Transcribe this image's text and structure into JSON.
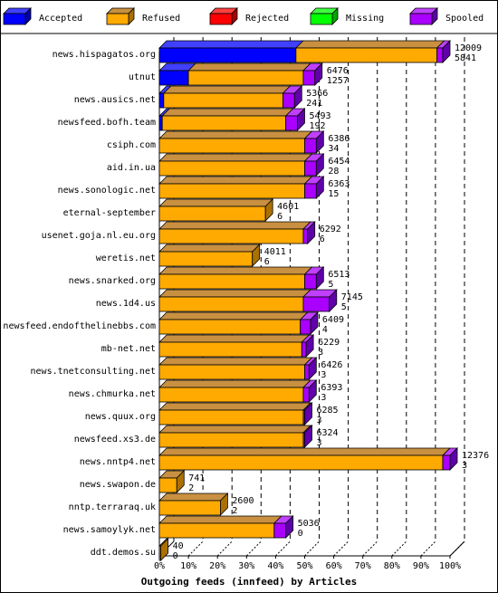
{
  "chart_data": {
    "type": "bar",
    "orientation": "horizontal",
    "stacked": true,
    "three_d": true,
    "title": "Outgoing feeds (innfeed) by Articles",
    "legend_position": "top",
    "grid": true,
    "xlim": [
      0,
      100
    ],
    "x_tick_labels": [
      "0%",
      "10%",
      "20%",
      "30%",
      "40%",
      "50%",
      "60%",
      "70%",
      "80%",
      "90%",
      "100%"
    ],
    "series": [
      {
        "name": "Accepted",
        "color": "#0000ff",
        "side": "#0000aa",
        "top": "#4040ff"
      },
      {
        "name": "Refused",
        "color": "#ffaa00",
        "side": "#aa7000",
        "top": "#c89040"
      },
      {
        "name": "Rejected",
        "color": "#ff0000",
        "side": "#aa0000",
        "top": "#ff4040"
      },
      {
        "name": "Missing",
        "color": "#00ff00",
        "side": "#00aa00",
        "top": "#40ff40"
      },
      {
        "name": "Spooled",
        "color": "#aa00ff",
        "side": "#6000aa",
        "top": "#c040ff"
      }
    ],
    "categories": [
      {
        "name": "news.hispagatos.org",
        "offered": "12009",
        "spooled_count": "5841",
        "Accepted": 47.0,
        "Refused": 48.5,
        "Rejected": 0,
        "Missing": 0,
        "Spooled": 2.0
      },
      {
        "name": "utnut",
        "offered": "6476",
        "spooled_count": "1257",
        "Accepted": 10.0,
        "Refused": 39.5,
        "Rejected": 0,
        "Missing": 0,
        "Spooled": 4.0
      },
      {
        "name": "news.ausics.net",
        "offered": "5366",
        "spooled_count": "241",
        "Accepted": 1.5,
        "Refused": 41.0,
        "Rejected": 0,
        "Missing": 0,
        "Spooled": 4.0
      },
      {
        "name": "newsfeed.bofh.team",
        "offered": "5493",
        "spooled_count": "192",
        "Accepted": 1.0,
        "Refused": 42.5,
        "Rejected": 0,
        "Missing": 0,
        "Spooled": 4.0
      },
      {
        "name": "csiph.com",
        "offered": "6386",
        "spooled_count": "34",
        "Accepted": 0,
        "Refused": 50.0,
        "Rejected": 0,
        "Missing": 0,
        "Spooled": 4.0
      },
      {
        "name": "aid.in.ua",
        "offered": "6454",
        "spooled_count": "28",
        "Accepted": 0,
        "Refused": 50.0,
        "Rejected": 0,
        "Missing": 0,
        "Spooled": 4.0
      },
      {
        "name": "news.sonologic.net",
        "offered": "6363",
        "spooled_count": "15",
        "Accepted": 0,
        "Refused": 50.0,
        "Rejected": 0,
        "Missing": 0,
        "Spooled": 4.0
      },
      {
        "name": "eternal-september",
        "offered": "4601",
        "spooled_count": "6",
        "Accepted": 0,
        "Refused": 36.5,
        "Rejected": 0,
        "Missing": 0,
        "Spooled": 0
      },
      {
        "name": "usenet.goja.nl.eu.org",
        "offered": "6292",
        "spooled_count": "6",
        "Accepted": 0,
        "Refused": 49.5,
        "Rejected": 0,
        "Missing": 0,
        "Spooled": 1.5
      },
      {
        "name": "weretis.net",
        "offered": "4011",
        "spooled_count": "6",
        "Accepted": 0,
        "Refused": 32.0,
        "Rejected": 0,
        "Missing": 0,
        "Spooled": 0
      },
      {
        "name": "news.snarked.org",
        "offered": "6513",
        "spooled_count": "5",
        "Accepted": 0,
        "Refused": 50.0,
        "Rejected": 0,
        "Missing": 0,
        "Spooled": 4.0
      },
      {
        "name": "news.1d4.us",
        "offered": "7145",
        "spooled_count": "5",
        "Accepted": 0,
        "Refused": 49.5,
        "Rejected": 0,
        "Missing": 0,
        "Spooled": 9.0
      },
      {
        "name": "newsfeed.endofthelinebbs.com",
        "offered": "6409",
        "spooled_count": "4",
        "Accepted": 0,
        "Refused": 48.5,
        "Rejected": 0,
        "Missing": 0,
        "Spooled": 3.5
      },
      {
        "name": "mb-net.net",
        "offered": "6229",
        "spooled_count": "3",
        "Accepted": 0,
        "Refused": 49.0,
        "Rejected": 0,
        "Missing": 0,
        "Spooled": 1.5
      },
      {
        "name": "news.tnetconsulting.net",
        "offered": "6426",
        "spooled_count": "3",
        "Accepted": 0,
        "Refused": 50.0,
        "Rejected": 0,
        "Missing": 0,
        "Spooled": 1.5
      },
      {
        "name": "news.chmurka.net",
        "offered": "6393",
        "spooled_count": "3",
        "Accepted": 0,
        "Refused": 49.5,
        "Rejected": 0,
        "Missing": 0,
        "Spooled": 2.0
      },
      {
        "name": "news.quux.org",
        "offered": "6285",
        "spooled_count": "3",
        "Accepted": 0,
        "Refused": 49.5,
        "Rejected": 0,
        "Missing": 0,
        "Spooled": 0.5
      },
      {
        "name": "newsfeed.xs3.de",
        "offered": "6324",
        "spooled_count": "3",
        "Accepted": 0,
        "Refused": 49.5,
        "Rejected": 0,
        "Missing": 0,
        "Spooled": 0.5
      },
      {
        "name": "news.nntp4.net",
        "offered": "12376",
        "spooled_count": "3",
        "Accepted": 0,
        "Refused": 97.5,
        "Rejected": 0,
        "Missing": 0,
        "Spooled": 2.5
      },
      {
        "name": "news.swapon.de",
        "offered": "741",
        "spooled_count": "2",
        "Accepted": 0,
        "Refused": 6.0,
        "Rejected": 0,
        "Missing": 0,
        "Spooled": 0
      },
      {
        "name": "nntp.terraraq.uk",
        "offered": "2600",
        "spooled_count": "2",
        "Accepted": 0,
        "Refused": 21.0,
        "Rejected": 0,
        "Missing": 0,
        "Spooled": 0
      },
      {
        "name": "news.samoylyk.net",
        "offered": "5036",
        "spooled_count": "0",
        "Accepted": 0,
        "Refused": 39.5,
        "Rejected": 0,
        "Missing": 0,
        "Spooled": 4.0
      },
      {
        "name": "ddt.demos.su",
        "offered": "40",
        "spooled_count": "0",
        "Accepted": 0,
        "Refused": 0.5,
        "Rejected": 0,
        "Missing": 0,
        "Spooled": 0
      }
    ]
  }
}
